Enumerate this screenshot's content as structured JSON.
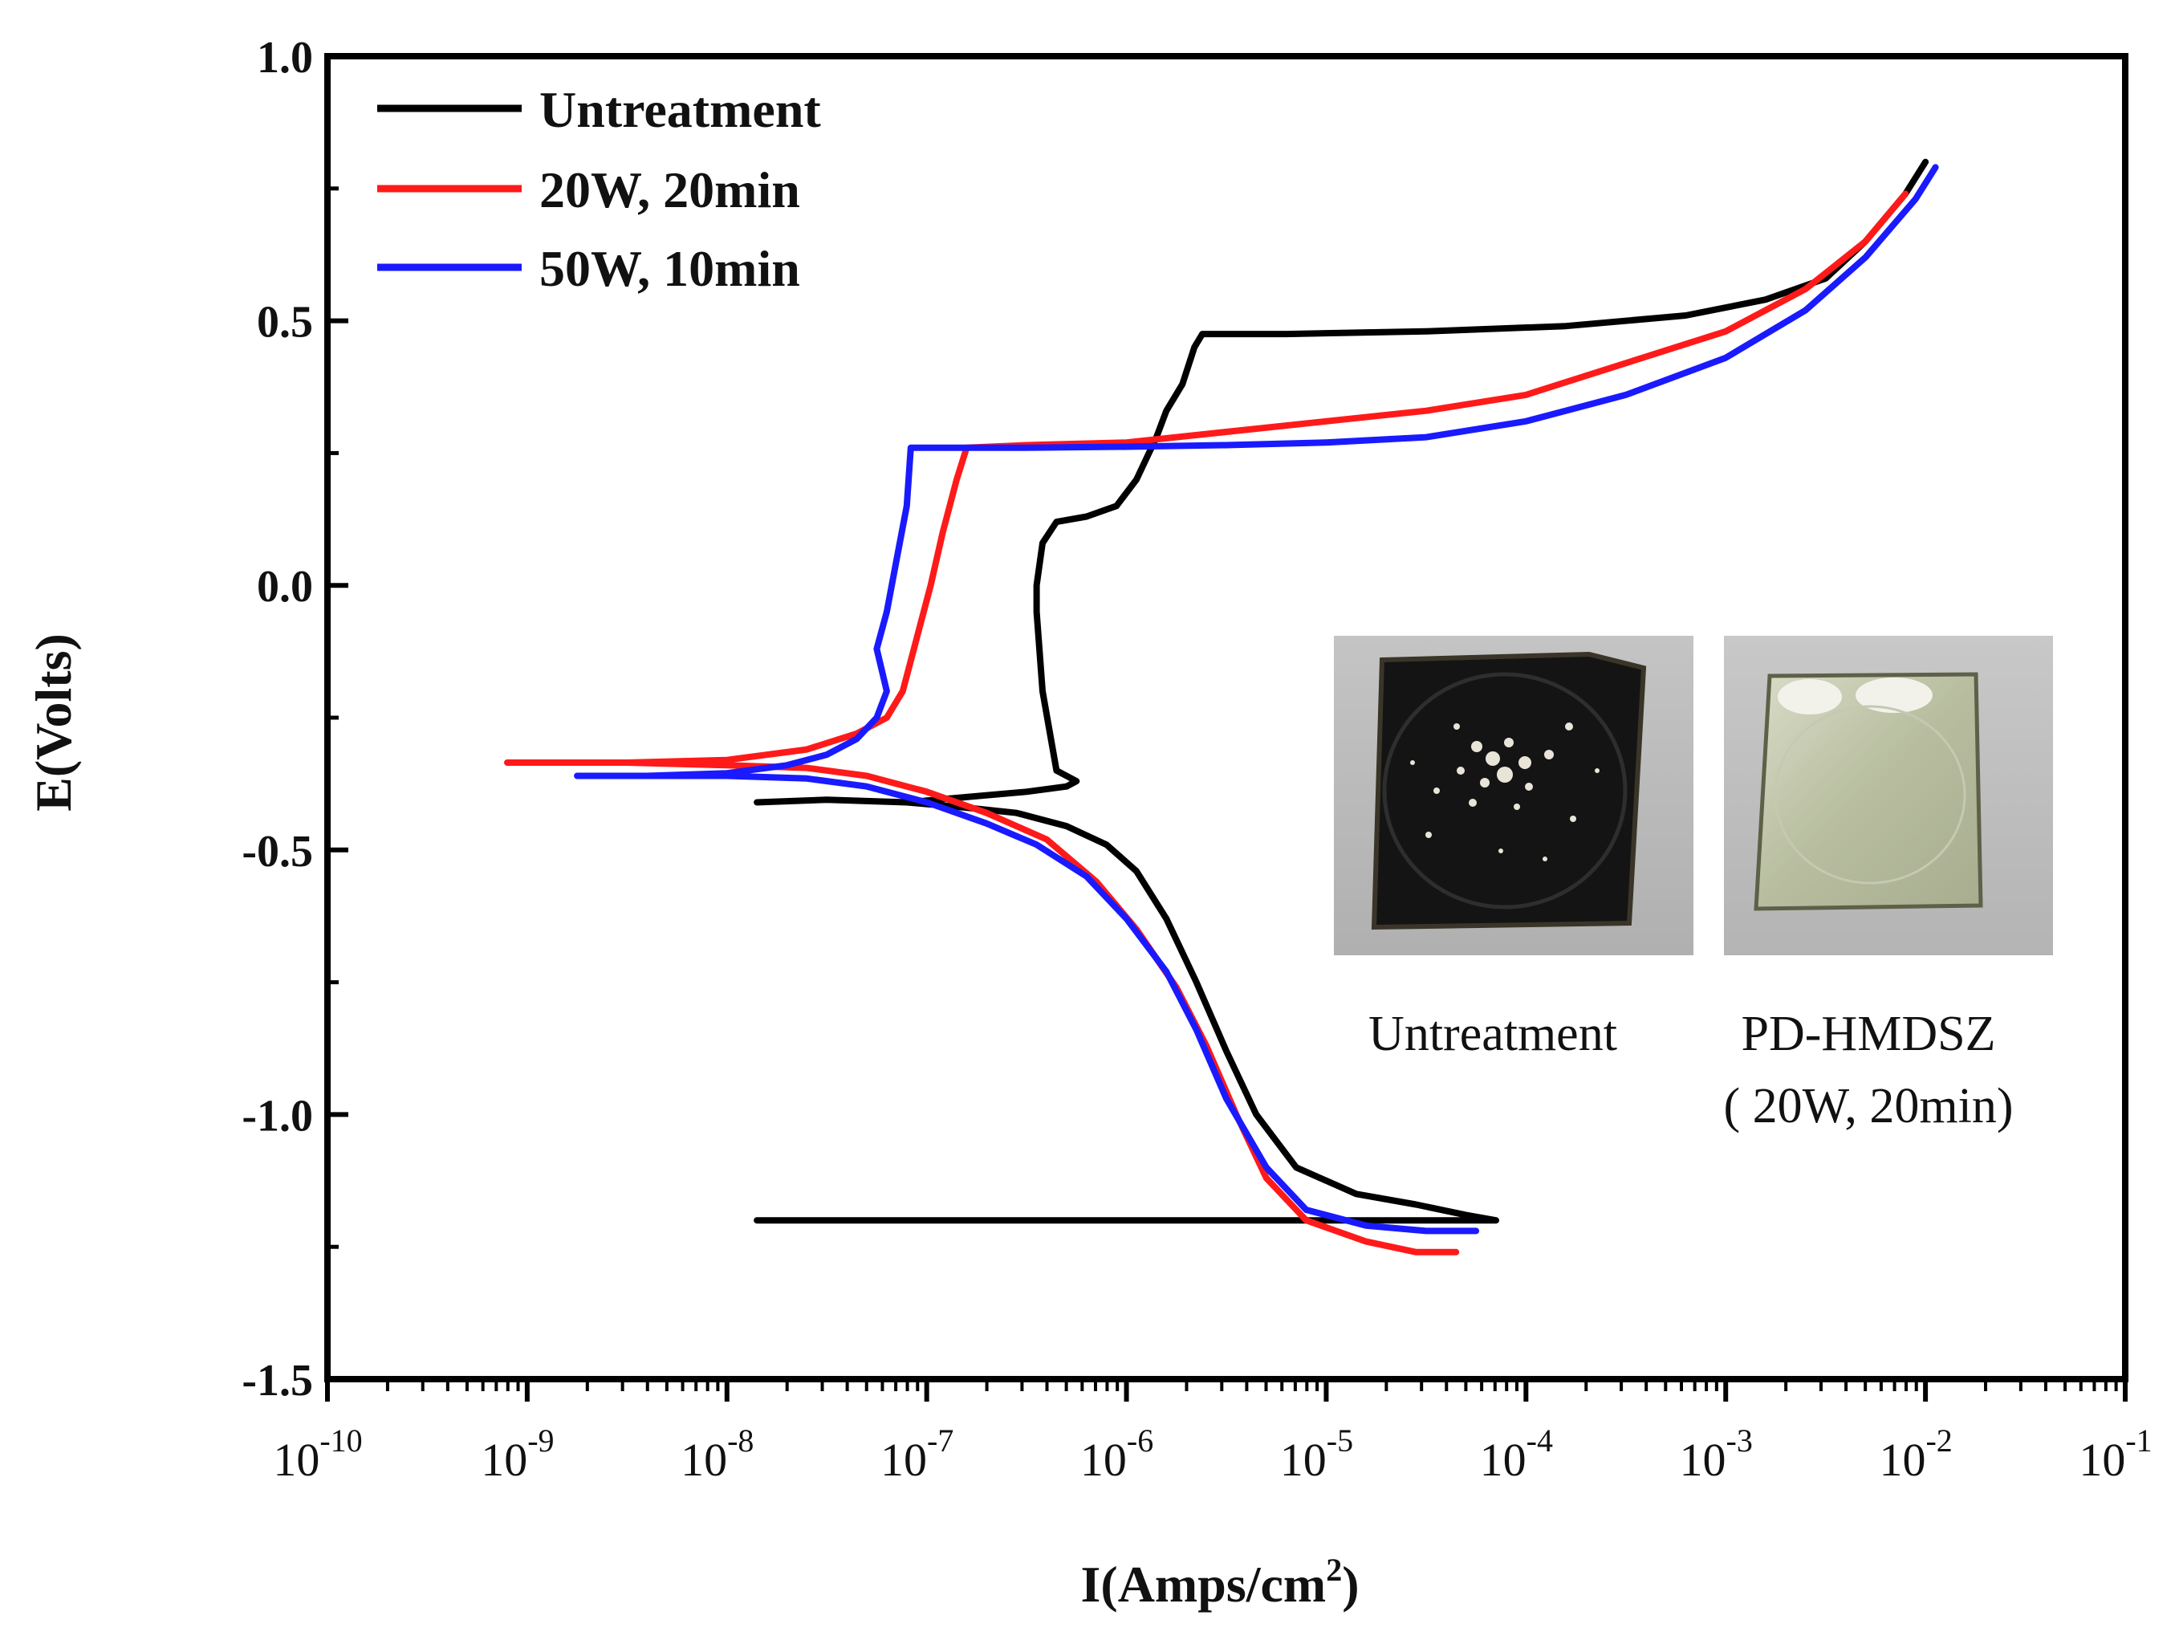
{
  "chart_data": {
    "type": "line",
    "title": "",
    "xlabel": "I(Amps/cm",
    "xlabel_sup": "2",
    "xlabel_close": ")",
    "ylabel": "E(Volts)",
    "xscale": "log",
    "xlim_exp": [
      -10,
      -1
    ],
    "ylim": [
      -1.5,
      1.0
    ],
    "yticks": [
      1.0,
      0.5,
      0.0,
      -0.5,
      -1.0,
      -1.5
    ],
    "ytick_labels": [
      "1.0",
      "0.5",
      "0.0",
      "-0.5",
      "-1.0",
      "-1.5"
    ],
    "xtick_exponents": [
      -10,
      -9,
      -8,
      -7,
      -6,
      -5,
      -4,
      -3,
      -2,
      -1
    ],
    "xtick_base": "10",
    "legend_position": "top-left",
    "series": [
      {
        "name": "Untreatment",
        "color": "#000000",
        "points": [
          [
            -7.85,
            -1.2
          ],
          [
            -4.15,
            -1.2
          ],
          [
            -4.3,
            -1.19
          ],
          [
            -4.55,
            -1.17
          ],
          [
            -4.85,
            -1.15
          ],
          [
            -5.15,
            -1.1
          ],
          [
            -5.35,
            -1.0
          ],
          [
            -5.5,
            -0.88
          ],
          [
            -5.65,
            -0.75
          ],
          [
            -5.8,
            -0.63
          ],
          [
            -5.95,
            -0.54
          ],
          [
            -6.1,
            -0.49
          ],
          [
            -6.3,
            -0.455
          ],
          [
            -6.55,
            -0.43
          ],
          [
            -6.8,
            -0.42
          ],
          [
            -7.1,
            -0.41
          ],
          [
            -7.5,
            -0.405
          ],
          [
            -7.85,
            -0.41
          ],
          [
            -7.5,
            -0.405
          ],
          [
            -7.1,
            -0.41
          ],
          [
            -6.8,
            -0.4
          ],
          [
            -6.5,
            -0.39
          ],
          [
            -6.3,
            -0.38
          ],
          [
            -6.25,
            -0.37
          ],
          [
            -6.35,
            -0.35
          ],
          [
            -6.42,
            -0.2
          ],
          [
            -6.45,
            -0.05
          ],
          [
            -6.45,
            0.0
          ],
          [
            -6.42,
            0.08
          ],
          [
            -6.35,
            0.12
          ],
          [
            -6.2,
            0.13
          ],
          [
            -6.05,
            0.15
          ],
          [
            -5.95,
            0.2
          ],
          [
            -5.85,
            0.28
          ],
          [
            -5.8,
            0.33
          ],
          [
            -5.72,
            0.38
          ],
          [
            -5.66,
            0.45
          ],
          [
            -5.62,
            0.475
          ],
          [
            -5.2,
            0.475
          ],
          [
            -4.5,
            0.48
          ],
          [
            -3.8,
            0.49
          ],
          [
            -3.2,
            0.51
          ],
          [
            -2.8,
            0.54
          ],
          [
            -2.5,
            0.58
          ],
          [
            -2.3,
            0.65
          ],
          [
            -2.1,
            0.74
          ],
          [
            -2.0,
            0.8
          ]
        ]
      },
      {
        "name": "20W, 20min",
        "color": "#ff1a1a",
        "points": [
          [
            -4.35,
            -1.26
          ],
          [
            -4.55,
            -1.26
          ],
          [
            -4.8,
            -1.24
          ],
          [
            -5.1,
            -1.2
          ],
          [
            -5.3,
            -1.12
          ],
          [
            -5.45,
            -1.0
          ],
          [
            -5.6,
            -0.87
          ],
          [
            -5.75,
            -0.76
          ],
          [
            -5.95,
            -0.65
          ],
          [
            -6.15,
            -0.56
          ],
          [
            -6.4,
            -0.48
          ],
          [
            -6.7,
            -0.43
          ],
          [
            -7.0,
            -0.39
          ],
          [
            -7.3,
            -0.36
          ],
          [
            -7.6,
            -0.345
          ],
          [
            -8.0,
            -0.34
          ],
          [
            -8.5,
            -0.335
          ],
          [
            -9.1,
            -0.335
          ],
          [
            -8.5,
            -0.335
          ],
          [
            -8.0,
            -0.33
          ],
          [
            -7.6,
            -0.31
          ],
          [
            -7.35,
            -0.28
          ],
          [
            -7.2,
            -0.25
          ],
          [
            -7.12,
            -0.2
          ],
          [
            -7.05,
            -0.1
          ],
          [
            -6.98,
            0.0
          ],
          [
            -6.92,
            0.1
          ],
          [
            -6.85,
            0.2
          ],
          [
            -6.8,
            0.26
          ],
          [
            -6.5,
            0.265
          ],
          [
            -6.0,
            0.27
          ],
          [
            -5.5,
            0.29
          ],
          [
            -5.0,
            0.31
          ],
          [
            -4.5,
            0.33
          ],
          [
            -4.0,
            0.36
          ],
          [
            -3.5,
            0.42
          ],
          [
            -3.0,
            0.48
          ],
          [
            -2.6,
            0.56
          ],
          [
            -2.3,
            0.65
          ],
          [
            -2.1,
            0.74
          ]
        ]
      },
      {
        "name": "50W, 10min",
        "color": "#1a1aff",
        "points": [
          [
            -4.25,
            -1.22
          ],
          [
            -4.5,
            -1.22
          ],
          [
            -4.8,
            -1.21
          ],
          [
            -5.1,
            -1.18
          ],
          [
            -5.3,
            -1.1
          ],
          [
            -5.5,
            -0.97
          ],
          [
            -5.65,
            -0.84
          ],
          [
            -5.8,
            -0.73
          ],
          [
            -6.0,
            -0.63
          ],
          [
            -6.2,
            -0.55
          ],
          [
            -6.45,
            -0.49
          ],
          [
            -6.7,
            -0.45
          ],
          [
            -7.0,
            -0.41
          ],
          [
            -7.3,
            -0.38
          ],
          [
            -7.6,
            -0.365
          ],
          [
            -8.0,
            -0.36
          ],
          [
            -8.5,
            -0.36
          ],
          [
            -8.75,
            -0.36
          ],
          [
            -8.4,
            -0.36
          ],
          [
            -8.0,
            -0.355
          ],
          [
            -7.7,
            -0.34
          ],
          [
            -7.5,
            -0.32
          ],
          [
            -7.35,
            -0.29
          ],
          [
            -7.25,
            -0.25
          ],
          [
            -7.2,
            -0.2
          ],
          [
            -7.25,
            -0.12
          ],
          [
            -7.2,
            -0.05
          ],
          [
            -7.15,
            0.05
          ],
          [
            -7.1,
            0.15
          ],
          [
            -7.08,
            0.26
          ],
          [
            -6.5,
            0.26
          ],
          [
            -6.0,
            0.262
          ],
          [
            -5.5,
            0.265
          ],
          [
            -5.0,
            0.27
          ],
          [
            -4.5,
            0.28
          ],
          [
            -4.0,
            0.31
          ],
          [
            -3.5,
            0.36
          ],
          [
            -3.0,
            0.43
          ],
          [
            -2.6,
            0.52
          ],
          [
            -2.3,
            0.62
          ],
          [
            -2.05,
            0.73
          ],
          [
            -1.95,
            0.79
          ]
        ]
      }
    ],
    "inset": {
      "photos": [
        {
          "caption": "Untreatment"
        },
        {
          "caption_line1": "PD-HMDSZ",
          "caption_line2": "( 20W, 20min)"
        }
      ]
    }
  }
}
